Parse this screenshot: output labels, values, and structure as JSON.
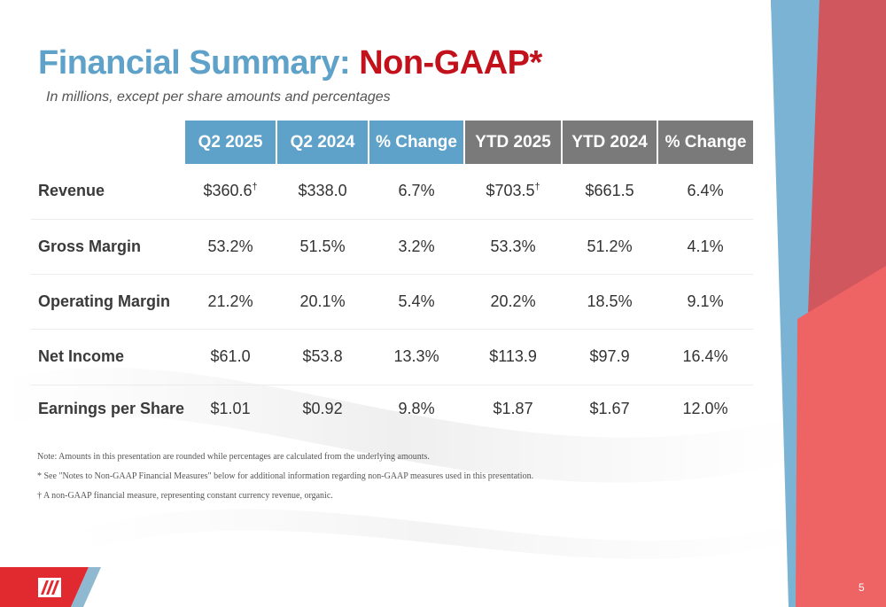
{
  "title": {
    "part1": "Financial Summary:",
    "part2": "Non-GAAP*"
  },
  "subtitle": "In millions, except per share amounts and percentages",
  "table": {
    "headers": [
      "Q2 2025",
      "Q2 2024",
      "% Change",
      "YTD 2025",
      "YTD 2024",
      "% Change"
    ],
    "rows": [
      {
        "label": "Revenue",
        "cells": [
          "$360.6",
          "$338.0",
          "6.7%",
          "$703.5",
          "$661.5",
          "6.4%"
        ],
        "marks": [
          "†",
          "",
          "",
          "†",
          "",
          ""
        ]
      },
      {
        "label": "Gross Margin",
        "cells": [
          "53.2%",
          "51.5%",
          "3.2%",
          "53.3%",
          "51.2%",
          "4.1%"
        ],
        "marks": [
          "",
          "",
          "",
          "",
          "",
          ""
        ]
      },
      {
        "label": "Operating Margin",
        "cells": [
          "21.2%",
          "20.1%",
          "5.4%",
          "20.2%",
          "18.5%",
          "9.1%"
        ],
        "marks": [
          "",
          "",
          "",
          "",
          "",
          ""
        ]
      },
      {
        "label": "Net Income",
        "cells": [
          "$61.0",
          "$53.8",
          "13.3%",
          "$113.9",
          "$97.9",
          "16.4%"
        ],
        "marks": [
          "",
          "",
          "",
          "",
          "",
          ""
        ]
      },
      {
        "label": "Earnings per Share",
        "cells": [
          "$1.01",
          "$0.92",
          "9.8%",
          "$1.87",
          "$1.67",
          "12.0%"
        ],
        "marks": [
          "",
          "",
          "",
          "",
          "",
          ""
        ]
      }
    ]
  },
  "notes": [
    "Note: Amounts in this presentation are rounded while percentages are calculated from the underlying amounts.",
    "* See \"Notes to Non-GAAP Financial Measures\" below for additional information regarding non-GAAP measures used in this presentation.",
    "† A non-GAAP financial measure, representing constant currency revenue, organic."
  ],
  "page_number": "5",
  "colors": {
    "blue": "#5ea1c9",
    "red": "#c3111c",
    "grey": "#7a7a7a",
    "coral": "#ec5f60"
  }
}
